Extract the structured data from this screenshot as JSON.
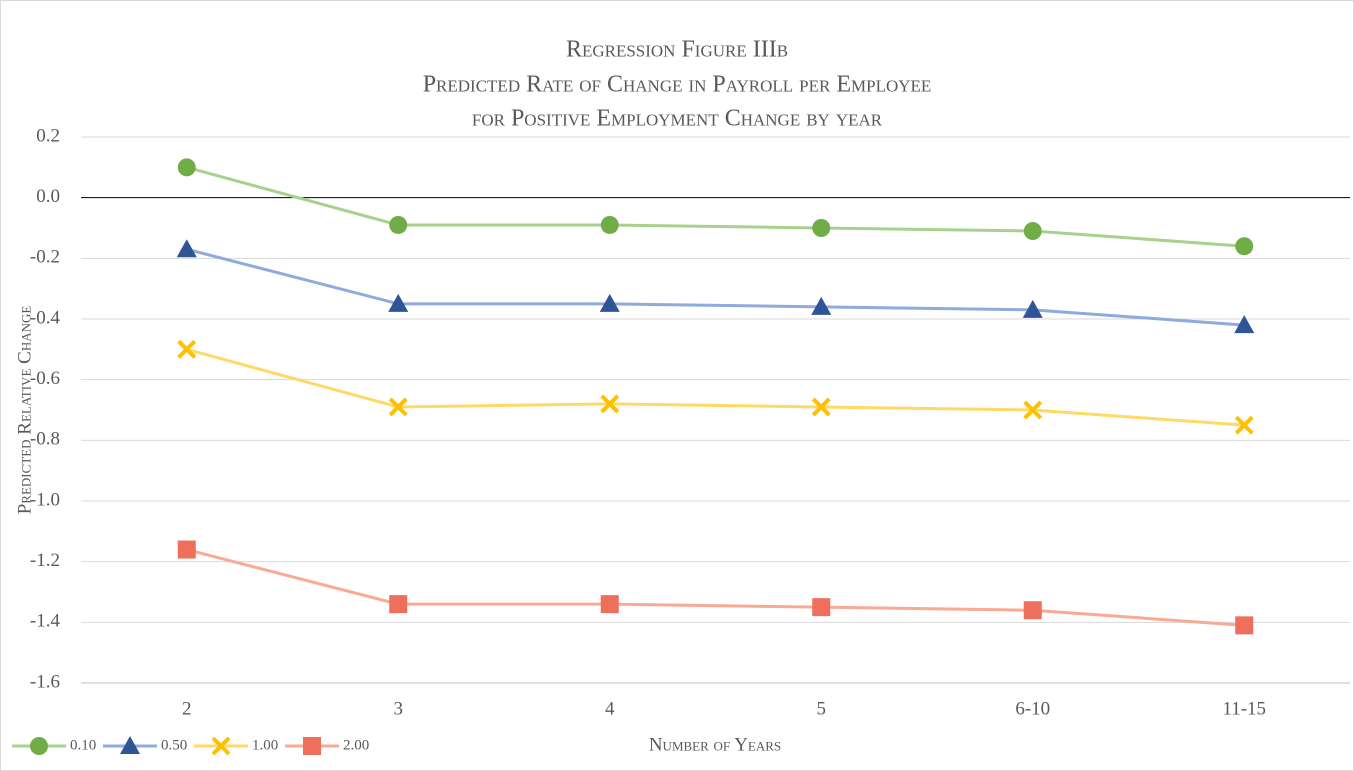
{
  "chart_data": {
    "type": "line",
    "title": [
      "Regression Figure IIIb",
      "Predicted Rate of Change in Payroll per Employee",
      "for Positive Employment Change by year"
    ],
    "x_label": "Number of Years",
    "y_label": "Predicted Relative Change",
    "categories": [
      "2",
      "3",
      "4",
      "5",
      "6-10",
      "11-15"
    ],
    "series": [
      {
        "name": "0.10",
        "color": "#70ad47",
        "line_color": "#a9d18e",
        "marker": "circle",
        "values": [
          0.1,
          -0.09,
          -0.09,
          -0.1,
          -0.11,
          -0.16
        ]
      },
      {
        "name": "0.50",
        "color": "#2f5597",
        "line_color": "#8faadc",
        "marker": "triangle",
        "values": [
          -0.17,
          -0.35,
          -0.35,
          -0.36,
          -0.37,
          -0.42
        ]
      },
      {
        "name": "1.00",
        "color": "#ffc000",
        "line_color": "#ffd966",
        "marker": "x",
        "values": [
          -0.5,
          -0.69,
          -0.68,
          -0.69,
          -0.7,
          -0.75
        ]
      },
      {
        "name": "2.00",
        "color": "#ee6f5b",
        "line_color": "#f8aa95",
        "marker": "square",
        "values": [
          -1.16,
          -1.34,
          -1.34,
          -1.35,
          -1.36,
          -1.41
        ]
      }
    ],
    "ylim": [
      -1.6,
      0.2
    ],
    "yticks": [
      0.2,
      {
        "value": 0,
        "label": "0.0"
      },
      -0.2,
      -0.4,
      -0.6,
      -0.8,
      {
        "value": -1,
        "label": "-1.0"
      },
      -1.2,
      -1.4,
      -1.6
    ],
    "grid": true,
    "legend": "bottom-left"
  }
}
